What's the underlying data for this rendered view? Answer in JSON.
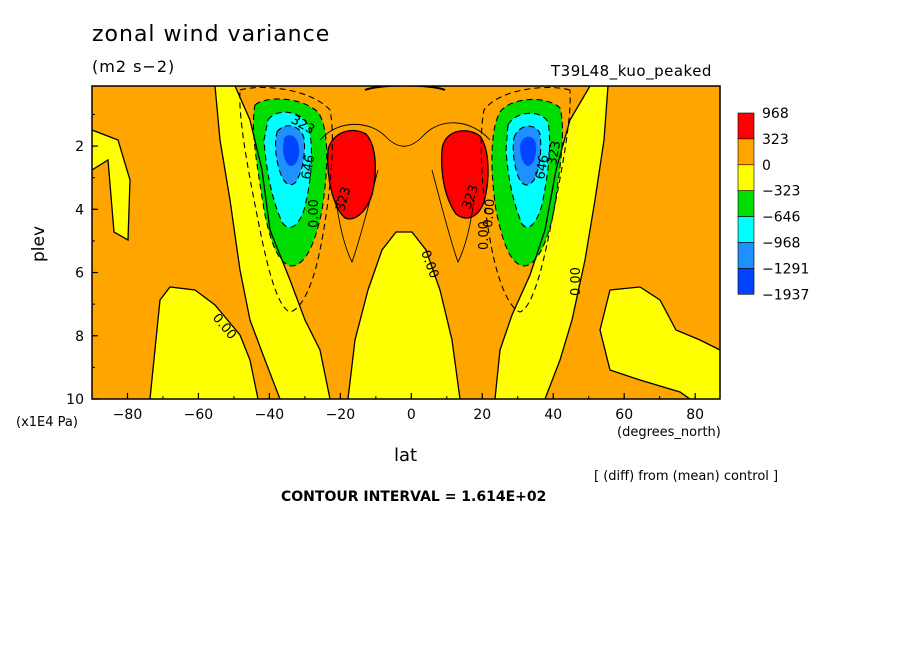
{
  "chart_data": {
    "type": "heatmap",
    "title": "zonal wind variance",
    "units": "(m2 s−2)",
    "run_label": "T39L48_kuo_peaked",
    "xlabel": "lat",
    "x_units": "(degrees_north)",
    "ylabel": "plev",
    "y_units": "(x1E4 Pa)",
    "note": "[ (diff) from (mean) control ]",
    "contour_interval": "CONTOUR INTERVAL = 1.614E+02",
    "xlim": [
      -90,
      87
    ],
    "ylim": [
      10,
      0.1
    ],
    "x_ticks": [
      "−80",
      "−60",
      "−40",
      "−20",
      "0",
      "20",
      "40",
      "60",
      "80"
    ],
    "y_ticks": [
      "2",
      "4",
      "6",
      "8",
      "10"
    ],
    "legend": {
      "placement": "right",
      "labels": [
        "968",
        "323",
        "0",
        "−323",
        "−646",
        "−968",
        "−1291",
        "−1937"
      ],
      "colors": [
        "#ff0000",
        "#ffa500",
        "#ffff00",
        "#00dd00",
        "#00ffff",
        "#1e90ff",
        "#0044ff"
      ]
    },
    "contour_labels": [
      "323",
      "0.00",
      "0.00",
      "323",
      "0.00",
      "0.00",
      "0.00",
      "323",
      "646",
      "323",
      "646",
      "0.00"
    ],
    "features": [
      {
        "name": "negative-core-sh",
        "lat": -32,
        "plev": 2.0,
        "min": -1937
      },
      {
        "name": "negative-core-nh",
        "lat": 33,
        "plev": 2.0,
        "min": -1937
      },
      {
        "name": "positive-core-sh",
        "lat": -18,
        "plev": 3.0,
        "max": 968
      },
      {
        "name": "positive-core-nh",
        "lat": 18,
        "plev": 3.0,
        "max": 968
      }
    ]
  }
}
